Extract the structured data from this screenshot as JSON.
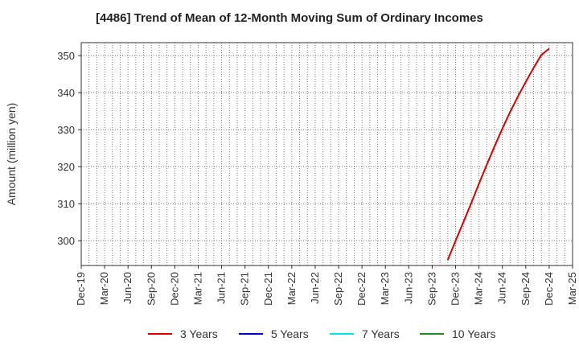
{
  "chart_data": {
    "type": "line",
    "title": "[4486]  Trend of Mean of 12-Month Moving Sum of Ordinary Incomes",
    "ylabel": "Amount (million yen)",
    "xlabel": "",
    "x_ticks": [
      "Dec-19",
      "Mar-20",
      "Jun-20",
      "Sep-20",
      "Dec-20",
      "Mar-21",
      "Jun-21",
      "Sep-21",
      "Dec-21",
      "Mar-22",
      "Jun-22",
      "Sep-22",
      "Dec-22",
      "Mar-23",
      "Jun-23",
      "Sep-23",
      "Dec-23",
      "Mar-24",
      "Jun-24",
      "Sep-24",
      "Dec-24",
      "Mar-25"
    ],
    "y_ticks": [
      300,
      310,
      320,
      330,
      340,
      350
    ],
    "ylim": [
      293.3,
      353.5
    ],
    "grid": true,
    "legend_position": "bottom",
    "series": [
      {
        "name": "3 Years",
        "color": "#dd0000",
        "x": [
          "Nov-23",
          "Dec-23",
          "Jan-24",
          "Feb-24",
          "Mar-24",
          "Apr-24",
          "May-24",
          "Jun-24",
          "Jul-24",
          "Aug-24",
          "Sep-24",
          "Oct-24",
          "Nov-24",
          "Dec-24"
        ],
        "values": [
          294.8,
          300.0,
          305.0,
          310.1,
          315.4,
          320.5,
          325.5,
          330.3,
          334.8,
          339.0,
          342.9,
          346.7,
          350.2,
          351.9
        ]
      },
      {
        "name": "5 Years",
        "color": "#0000cc",
        "x": [],
        "values": []
      },
      {
        "name": "7 Years",
        "color": "#00e5ee",
        "x": [],
        "values": []
      },
      {
        "name": "10 Years",
        "color": "#228b22",
        "x": [],
        "values": []
      }
    ]
  }
}
